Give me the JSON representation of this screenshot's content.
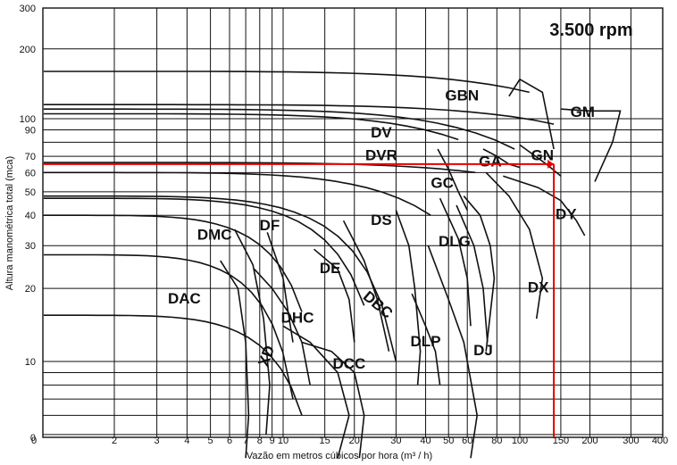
{
  "chart_data": {
    "type": "line",
    "title": "3.500 rpm",
    "xlabel": "Vazão em metros cúbicos por hora (m³ / h)",
    "ylabel": "Altura manométrica total (mca)",
    "x_ticks": [
      "0",
      "2",
      "3",
      "4",
      "5",
      "6",
      "7",
      "8",
      "9",
      "10",
      "15",
      "20",
      "30",
      "40",
      "50",
      "60",
      "80",
      "100",
      "150",
      "200",
      "300",
      "400"
    ],
    "y_ticks": [
      "0",
      "10",
      "20",
      "30",
      "40",
      "50",
      "60",
      "70",
      "90",
      "100",
      "200",
      "300"
    ],
    "xlim": [
      0,
      400
    ],
    "ylim": [
      0,
      300
    ],
    "scale": "log-log",
    "grid": true,
    "regions": [
      {
        "name": "DAC",
        "x": 3.9,
        "y": 18
      },
      {
        "name": "DMC",
        "x": 5.2,
        "y": 33
      },
      {
        "name": "DF",
        "x": 8.8,
        "y": 36
      },
      {
        "name": "DHC",
        "x": 11.5,
        "y": 15
      },
      {
        "name": "XD",
        "x": 8.6,
        "y": 10.5
      },
      {
        "name": "DE",
        "x": 15.8,
        "y": 24
      },
      {
        "name": "DBC",
        "x": 25,
        "y": 17
      },
      {
        "name": "DCC",
        "x": 19,
        "y": 9.7
      },
      {
        "name": "DS",
        "x": 26,
        "y": 38
      },
      {
        "name": "DLP",
        "x": 40,
        "y": 12
      },
      {
        "name": "DLG",
        "x": 53,
        "y": 31
      },
      {
        "name": "DJ",
        "x": 70,
        "y": 11
      },
      {
        "name": "DX",
        "x": 120,
        "y": 20
      },
      {
        "name": "DY",
        "x": 158,
        "y": 40
      },
      {
        "name": "DV",
        "x": 26,
        "y": 87
      },
      {
        "name": "DVR",
        "x": 26,
        "y": 70
      },
      {
        "name": "GC",
        "x": 47,
        "y": 54
      },
      {
        "name": "GA",
        "x": 75,
        "y": 66
      },
      {
        "name": "GN",
        "x": 125,
        "y": 70
      },
      {
        "name": "GBN",
        "x": 57,
        "y": 125
      },
      {
        "name": "GM",
        "x": 186,
        "y": 106
      }
    ],
    "operating_point": {
      "x": 140,
      "y": 65
    }
  }
}
